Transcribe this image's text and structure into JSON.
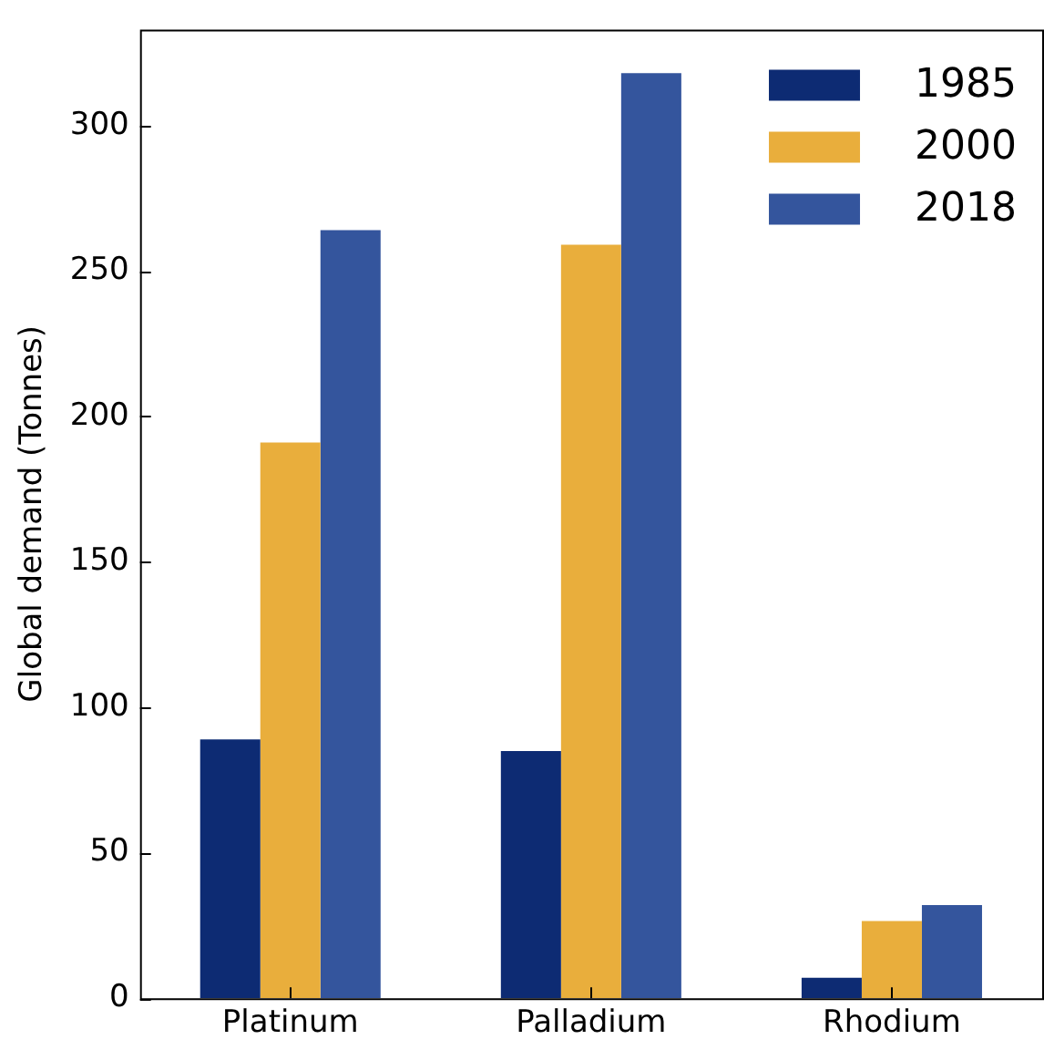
{
  "chart_data": {
    "type": "bar",
    "ylabel": "Global demand (Tonnes)",
    "categories": [
      "Platinum",
      "Palladium",
      "Rhodium"
    ],
    "series": [
      {
        "name": "1985",
        "color": "#0d2b73",
        "values": [
          89,
          85,
          7
        ]
      },
      {
        "name": "2000",
        "color": "#e9ae3c",
        "values": [
          191,
          259,
          26.5
        ]
      },
      {
        "name": "2018",
        "color": "#34559d",
        "values": [
          264,
          318,
          32
        ]
      }
    ],
    "ylim": [
      0,
      333
    ],
    "yticks": [
      0,
      50,
      100,
      150,
      200,
      250,
      300
    ],
    "grid": false,
    "legend": "top right"
  }
}
